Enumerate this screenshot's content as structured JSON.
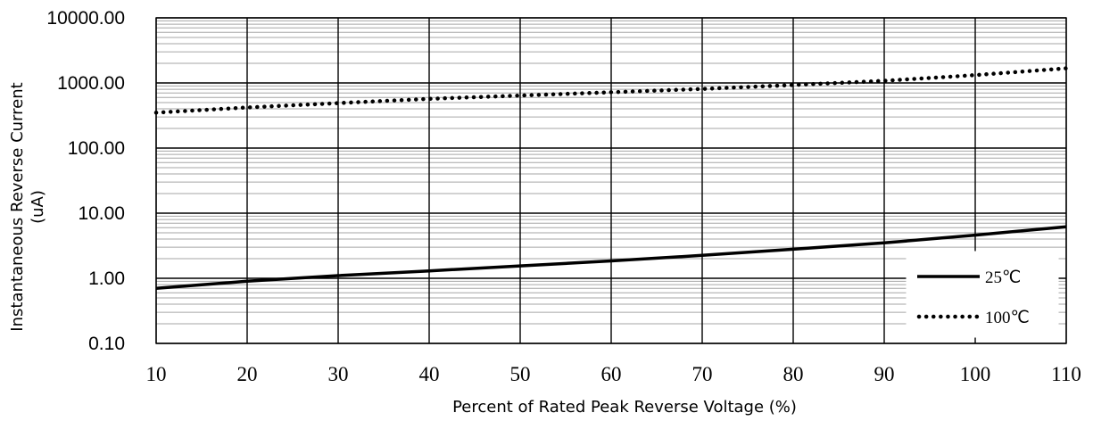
{
  "chart_data": {
    "type": "line",
    "title": "",
    "xlabel": "Percent of  Rated Peak Reverse Voltage (%)",
    "ylabel_line1": "Instantaneous Reverse Current",
    "ylabel_line2": "(uA)",
    "x_scale": "linear",
    "y_scale": "log",
    "xlim": [
      10,
      110
    ],
    "ylim": [
      0.1,
      10000
    ],
    "x_ticks": [
      10,
      20,
      30,
      40,
      50,
      60,
      70,
      80,
      90,
      100,
      110
    ],
    "x_tick_labels": [
      "10",
      "20",
      "30",
      "40",
      "50",
      "60",
      "70",
      "80",
      "90",
      "100",
      "110"
    ],
    "y_ticks": [
      0.1,
      1,
      10,
      100,
      1000,
      10000
    ],
    "y_tick_labels": [
      "0.10",
      "1.00",
      "10.00",
      "100.00",
      "1000.00",
      "10000.00"
    ],
    "grid": "major and minor",
    "legend_position": "bottom-right",
    "series": [
      {
        "name": "25℃",
        "style": "solid",
        "color": "#000000",
        "x": [
          10,
          20,
          30,
          40,
          50,
          60,
          70,
          80,
          90,
          100,
          110
        ],
        "y": [
          0.7,
          0.9,
          1.1,
          1.3,
          1.55,
          1.85,
          2.25,
          2.8,
          3.5,
          4.6,
          6.2
        ]
      },
      {
        "name": "100℃",
        "style": "dotted",
        "color": "#000000",
        "x": [
          10,
          20,
          30,
          40,
          50,
          60,
          70,
          80,
          90,
          100,
          110
        ],
        "y": [
          350,
          420,
          490,
          570,
          640,
          720,
          810,
          930,
          1080,
          1320,
          1680
        ]
      }
    ]
  }
}
